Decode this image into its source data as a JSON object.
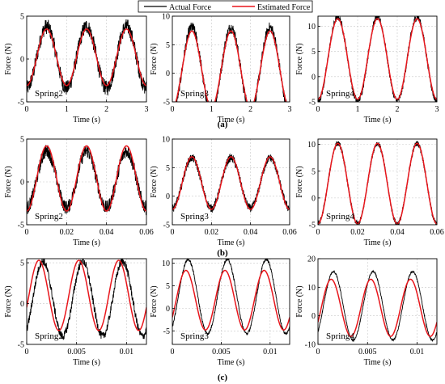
{
  "legend": [
    {
      "label": "Actual Force",
      "color": "#000000"
    },
    {
      "label": "Estimated Force",
      "color": "#e8151b"
    }
  ],
  "row_labels": [
    "(a)",
    "(b)",
    "(c)"
  ],
  "chart_data": [
    {
      "type": "line",
      "panel": "a-spring2",
      "annotation": "Spring2",
      "xlabel": "Time (s)",
      "ylabel": "Force (N)",
      "xlim": [
        0,
        3
      ],
      "ylim": [
        -5,
        5
      ],
      "xticks": [
        0,
        1,
        2,
        3
      ],
      "yticks": [
        -5,
        0,
        5
      ],
      "grid": true,
      "period": 1,
      "phase_deg": -90,
      "noise": 0.9,
      "series": [
        {
          "name": "Actual Force",
          "offset": 0.2,
          "amplitude": 3.6
        },
        {
          "name": "Estimated Force",
          "offset": 0.2,
          "amplitude": 3.3
        }
      ]
    },
    {
      "type": "line",
      "panel": "a-spring3",
      "annotation": "Spring3",
      "xlabel": "Time (s)",
      "ylabel": "Force (N)",
      "xlim": [
        0,
        3
      ],
      "ylim": [
        -5,
        10
      ],
      "xticks": [
        0,
        1,
        2,
        3
      ],
      "yticks": [
        -5,
        0,
        5,
        10
      ],
      "grid": true,
      "period": 1,
      "phase_deg": -90,
      "noise": 1.0,
      "series": [
        {
          "name": "Actual Force",
          "offset": 0.7,
          "amplitude": 7.3
        },
        {
          "name": "Estimated Force",
          "offset": 0.7,
          "amplitude": 6.7
        }
      ]
    },
    {
      "type": "line",
      "panel": "a-spring4",
      "annotation": "Spring4",
      "xlabel": "Time (s)",
      "ylabel": "Force (N)",
      "xlim": [
        0,
        3
      ],
      "ylim": [
        -5,
        12
      ],
      "xticks": [
        0,
        1,
        2,
        3
      ],
      "yticks": [
        -5,
        0,
        5,
        10
      ],
      "grid": true,
      "period": 1,
      "phase_deg": -90,
      "noise": 0.7,
      "series": [
        {
          "name": "Actual Force",
          "offset": 3.5,
          "amplitude": 8.3
        },
        {
          "name": "Estimated Force",
          "offset": 3.5,
          "amplitude": 8.0
        }
      ]
    },
    {
      "type": "line",
      "panel": "b-spring2",
      "annotation": "Spring2",
      "xlabel": "Time (s)",
      "ylabel": "Force (N)",
      "xlim": [
        0,
        0.06
      ],
      "ylim": [
        -5,
        5
      ],
      "xticks": [
        0,
        0.02,
        0.04,
        0.06
      ],
      "yticks": [
        -5,
        0,
        5
      ],
      "grid": true,
      "period": 0.02,
      "phase_deg": -90,
      "noise": 0.8,
      "series": [
        {
          "name": "Actual Force",
          "offset": 0.3,
          "amplitude": 3.3
        },
        {
          "name": "Estimated Force",
          "offset": 0.4,
          "amplitude": 3.8
        }
      ]
    },
    {
      "type": "line",
      "panel": "b-spring3",
      "annotation": "Spring3",
      "xlabel": "Time (s)",
      "ylabel": "Force (N)",
      "xlim": [
        0,
        0.06
      ],
      "ylim": [
        -5,
        10
      ],
      "xticks": [
        0,
        0.02,
        0.04,
        0.06
      ],
      "yticks": [
        -5,
        0,
        5,
        10
      ],
      "grid": true,
      "period": 0.02,
      "phase_deg": -90,
      "noise": 0.7,
      "series": [
        {
          "name": "Actual Force",
          "offset": 2.3,
          "amplitude": 4.4
        },
        {
          "name": "Estimated Force",
          "offset": 2.3,
          "amplitude": 4.6
        }
      ]
    },
    {
      "type": "line",
      "panel": "b-spring4",
      "annotation": "Spring4",
      "xlabel": "Time (s)",
      "ylabel": "Force (N)",
      "xlim": [
        0,
        0.06
      ],
      "ylim": [
        -5,
        11
      ],
      "xticks": [
        0,
        0.02,
        0.04,
        0.06
      ],
      "yticks": [
        -5,
        0,
        5,
        10
      ],
      "grid": true,
      "period": 0.02,
      "phase_deg": -90,
      "noise": 0.5,
      "series": [
        {
          "name": "Actual Force",
          "offset": 2.7,
          "amplitude": 7.5
        },
        {
          "name": "Estimated Force",
          "offset": 2.7,
          "amplitude": 7.5
        }
      ]
    },
    {
      "type": "line",
      "panel": "c-spring2",
      "annotation": "Spring2",
      "xlabel": "Time (s)",
      "ylabel": "Force (N)",
      "xlim": [
        0,
        0.012
      ],
      "ylim": [
        -5,
        5.5
      ],
      "xticks": [
        0,
        0.005,
        0.01
      ],
      "yticks": [
        -5,
        0,
        5
      ],
      "grid": true,
      "period": 0.004,
      "phase_deg": -20,
      "noise": 0.5,
      "series": [
        {
          "name": "Actual Force",
          "offset": 0.6,
          "amplitude": 4.6,
          "phase_deg": -55
        },
        {
          "name": "Estimated Force",
          "offset": 1.0,
          "amplitude": 4.3
        }
      ]
    },
    {
      "type": "line",
      "panel": "c-spring3",
      "annotation": "Spring3",
      "xlabel": "Time (s)",
      "ylabel": "Force (N)",
      "xlim": [
        0,
        0.012
      ],
      "ylim": [
        -8,
        11
      ],
      "xticks": [
        0,
        0.005,
        0.01
      ],
      "yticks": [
        -5,
        0,
        5,
        10
      ],
      "grid": true,
      "period": 0.004,
      "phase_deg": -35,
      "noise": 0.3,
      "series": [
        {
          "name": "Actual Force",
          "offset": 2.6,
          "amplitude": 8.2,
          "phase_deg": -55
        },
        {
          "name": "Estimated Force",
          "offset": 1.8,
          "amplitude": 6.6
        }
      ]
    },
    {
      "type": "line",
      "panel": "c-spring4",
      "annotation": "Spring4",
      "xlabel": "Time (s)",
      "ylabel": "Force (N)",
      "xlim": [
        0,
        0.012
      ],
      "ylim": [
        -10,
        20
      ],
      "xticks": [
        0,
        0.005,
        0.01
      ],
      "yticks": [
        -10,
        0,
        10,
        20
      ],
      "grid": true,
      "period": 0.004,
      "phase_deg": -30,
      "noise": 0.3,
      "series": [
        {
          "name": "Actual Force",
          "offset": 3.5,
          "amplitude": 12.0,
          "phase_deg": -50
        },
        {
          "name": "Estimated Force",
          "offset": 2.8,
          "amplitude": 10.0
        }
      ]
    }
  ]
}
